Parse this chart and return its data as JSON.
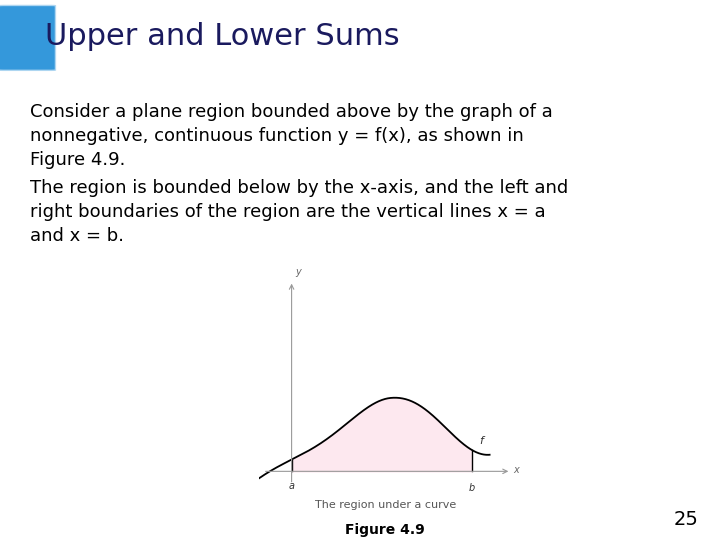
{
  "title": "Upper and Lower Sums",
  "title_bg_color": "#aed6f1",
  "title_box_color": "#3498db",
  "title_fontsize": 22,
  "bg_color": "#ffffff",
  "para1_lines": [
    "Consider a plane region bounded above by the graph of a",
    "nonnegative, continuous function y = f(x), as shown in",
    "Figure 4.9."
  ],
  "para2_lines": [
    "The region is bounded below by the x-axis, and the left and",
    "right boundaries of the region are the vertical lines x = a",
    "and x = b."
  ],
  "para_fontsize": 13,
  "fig_caption": "Figure 4.9",
  "fig_sub_caption": "The region under a curve",
  "page_num": "25",
  "curve_fill_color": "#fde8ef",
  "curve_line_color": "#000000",
  "axis_color": "#999999"
}
